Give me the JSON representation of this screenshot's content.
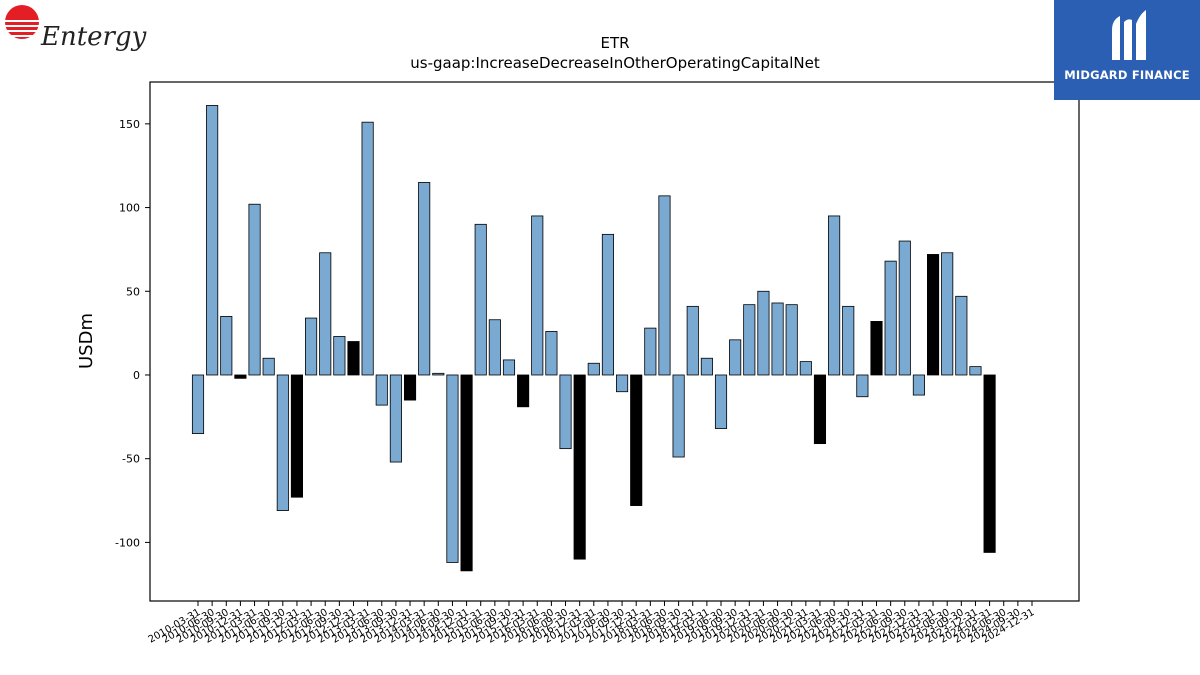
{
  "branding": {
    "left_logo_text": "Entergy",
    "right_logo_text": "MIDGARD FINANCE",
    "left_logo_color": "#e31e24",
    "right_logo_color": "#2b5fb4"
  },
  "chart_data": {
    "type": "bar",
    "title": "ETR",
    "subtitle": "us-gaap:IncreaseDecreaseInOtherOperatingCapitalNet",
    "xlabel": "",
    "ylabel": "USDm",
    "ylim": [
      -135,
      175
    ],
    "yticks": [
      -100,
      -50,
      0,
      50,
      100,
      150
    ],
    "grid": false,
    "colors": {
      "quarter": "#7aa9d1",
      "annual": "#000000",
      "edge": "#000000"
    },
    "categories": [
      "2010-03-31",
      "2010-06-30",
      "2010-09-30",
      "2010-12-31",
      "2011-03-31",
      "2011-06-30",
      "2011-09-30",
      "2011-12-31",
      "2012-03-31",
      "2012-06-30",
      "2012-09-30",
      "2012-12-31",
      "2013-03-31",
      "2013-06-30",
      "2013-09-30",
      "2013-12-31",
      "2014-03-31",
      "2014-06-30",
      "2014-09-30",
      "2014-12-31",
      "2015-03-31",
      "2015-06-30",
      "2015-09-30",
      "2015-12-31",
      "2016-03-31",
      "2016-06-30",
      "2016-09-30",
      "2016-12-31",
      "2017-03-31",
      "2017-06-30",
      "2017-09-30",
      "2017-12-31",
      "2018-03-31",
      "2018-06-30",
      "2018-09-30",
      "2018-12-31",
      "2019-03-31",
      "2019-06-30",
      "2019-09-30",
      "2019-12-31",
      "2020-03-31",
      "2020-06-30",
      "2020-09-30",
      "2020-12-31",
      "2021-03-31",
      "2021-06-30",
      "2021-09-30",
      "2021-12-31",
      "2022-03-31",
      "2022-06-30",
      "2022-09-30",
      "2022-12-31",
      "2023-03-31",
      "2023-06-30",
      "2023-09-30",
      "2023-12-31",
      "2024-03-31",
      "2024-06-30",
      "2024-09-30",
      "2024-12-31"
    ],
    "values": [
      -35,
      161,
      35,
      -2,
      102,
      10,
      -81,
      -73,
      34,
      73,
      23,
      20,
      151,
      -18,
      -52,
      -15,
      115,
      1,
      -112,
      -117,
      90,
      33,
      9,
      -19,
      95,
      26,
      -44,
      -110,
      7,
      84,
      -10,
      -78,
      28,
      107,
      -49,
      41,
      10,
      -32,
      21,
      42,
      50,
      43,
      42,
      8,
      -41,
      95,
      41,
      -13,
      32,
      68,
      80,
      -12,
      72,
      73,
      47,
      5,
      -106,
      null,
      null,
      null
    ],
    "annual": [
      false,
      false,
      false,
      true,
      false,
      false,
      false,
      true,
      false,
      false,
      false,
      true,
      false,
      false,
      false,
      true,
      false,
      false,
      false,
      true,
      false,
      false,
      false,
      true,
      false,
      false,
      false,
      true,
      false,
      false,
      false,
      true,
      false,
      false,
      false,
      false,
      false,
      false,
      false,
      false,
      false,
      false,
      false,
      false,
      true,
      false,
      false,
      false,
      true,
      false,
      false,
      false,
      true,
      false,
      false,
      false,
      true,
      false,
      false,
      false
    ]
  }
}
